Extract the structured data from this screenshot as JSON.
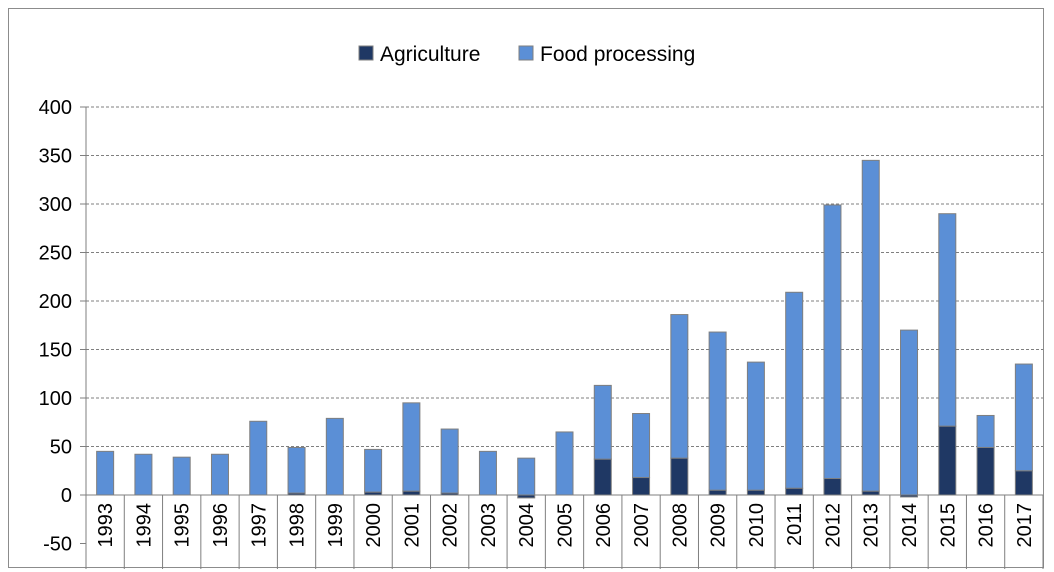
{
  "chart_data": {
    "type": "bar",
    "stacked": true,
    "categories": [
      "1993",
      "1994",
      "1995",
      "1996",
      "1997",
      "1998",
      "1999",
      "2000",
      "2001",
      "2002",
      "2003",
      "2004",
      "2005",
      "2006",
      "2007",
      "2008",
      "2009",
      "2010",
      "2011",
      "2012",
      "2013",
      "2014",
      "2015",
      "2016",
      "2017"
    ],
    "series": [
      {
        "name": "Agriculture",
        "color": "#1f3864",
        "values": [
          0,
          0,
          0,
          0,
          0,
          2,
          0,
          3,
          4,
          2,
          0,
          -3,
          0,
          37,
          18,
          38,
          5,
          5,
          7,
          17,
          4,
          -2,
          71,
          49,
          25
        ]
      },
      {
        "name": "Food processing",
        "color": "#5b8fd6",
        "values": [
          45,
          42,
          39,
          42,
          76,
          47,
          79,
          44,
          91,
          66,
          45,
          38,
          65,
          76,
          66,
          148,
          163,
          132,
          202,
          282,
          341,
          170,
          219,
          33,
          110
        ]
      }
    ],
    "ylim": [
      -50,
      400
    ],
    "yticks": [
      "-50",
      "0",
      "50",
      "100",
      "150",
      "200",
      "250",
      "300",
      "350",
      "400"
    ],
    "grid": true,
    "legend_position": "top"
  }
}
